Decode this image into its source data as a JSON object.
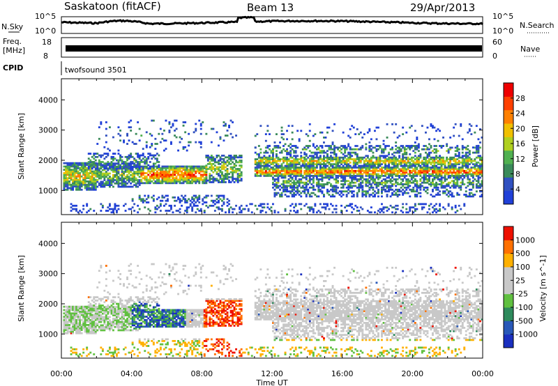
{
  "header": {
    "site": "Saskatoon (fitACF)",
    "beam": "Beam 13",
    "date": "29/Apr/2013"
  },
  "top_panels": {
    "nsky_label": "N.Sky",
    "nsky_ticks": [
      "10^5",
      "10^0"
    ],
    "nsearch_label": "N.Search",
    "nsearch_ticks": [
      "10^5",
      "10^0"
    ],
    "freq_label_line1": "Freq.",
    "freq_label_line2": "[MHz]",
    "freq_ticks": [
      "18",
      "8"
    ],
    "nave_label": "Nave",
    "nave_ticks": [
      "60",
      "0"
    ],
    "cpid_label": "CPID",
    "cpid_value": "twofsound 3501"
  },
  "colors": {
    "power_scale": [
      "#2040d8",
      "#3050c0",
      "#3a8a5a",
      "#50b050",
      "#b0d020",
      "#f0c000",
      "#ff8000",
      "#ff4000",
      "#ee0000"
    ],
    "velocity_scale": [
      "#1a2fbf",
      "#2858b8",
      "#2e8a5c",
      "#60c040",
      "#c8c8c8",
      "#c8c8c8",
      "#ffb000",
      "#ff7000",
      "#ee1000"
    ]
  },
  "chart_data": [
    {
      "type": "heatmap",
      "title": "Power",
      "xlabel": "Time UT",
      "ylabel": "Slant Range [km]",
      "x_ticks": [
        "00:00",
        "04:00",
        "08:00",
        "12:00",
        "16:00",
        "20:00",
        "00:00"
      ],
      "y_ticks": [
        1000,
        2000,
        3000,
        4000
      ],
      "ylim": [
        200,
        4700
      ],
      "xlim_hours": [
        0,
        24
      ],
      "colorbar": {
        "label": "Power [dB]",
        "ticks": [
          4,
          8,
          12,
          16,
          20,
          24,
          28
        ],
        "range": [
          0,
          30
        ]
      }
    },
    {
      "type": "heatmap",
      "title": "Velocity",
      "xlabel": "Time UT",
      "ylabel": "Slant Range [km]",
      "x_ticks": [
        "00:00",
        "04:00",
        "08:00",
        "12:00",
        "16:00",
        "20:00",
        "00:00"
      ],
      "y_ticks": [
        1000,
        2000,
        3000,
        4000
      ],
      "ylim": [
        200,
        4700
      ],
      "xlim_hours": [
        0,
        24
      ],
      "colorbar": {
        "label": "Velocity [m s^-1]",
        "ticks": [
          1000,
          500,
          100,
          25,
          -25,
          -100,
          -500,
          -1000
        ]
      }
    }
  ]
}
